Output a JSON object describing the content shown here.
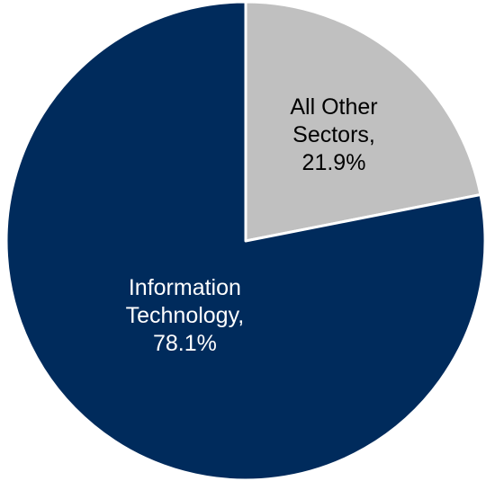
{
  "chart_data": {
    "type": "pie",
    "slices": [
      {
        "label_lines": [
          "All Other",
          "Sectors,",
          "21.9%"
        ],
        "category": "All Other Sectors",
        "value": 21.9,
        "color": "#c0c0c0",
        "label_color": "#000000"
      },
      {
        "label_lines": [
          "Information",
          "Technology,",
          "78.1%"
        ],
        "category": "Information Technology",
        "value": 78.1,
        "color": "#002b5c",
        "label_color": "#ffffff"
      }
    ],
    "legend": "none",
    "start": "12 o'clock",
    "direction": "clockwise"
  }
}
